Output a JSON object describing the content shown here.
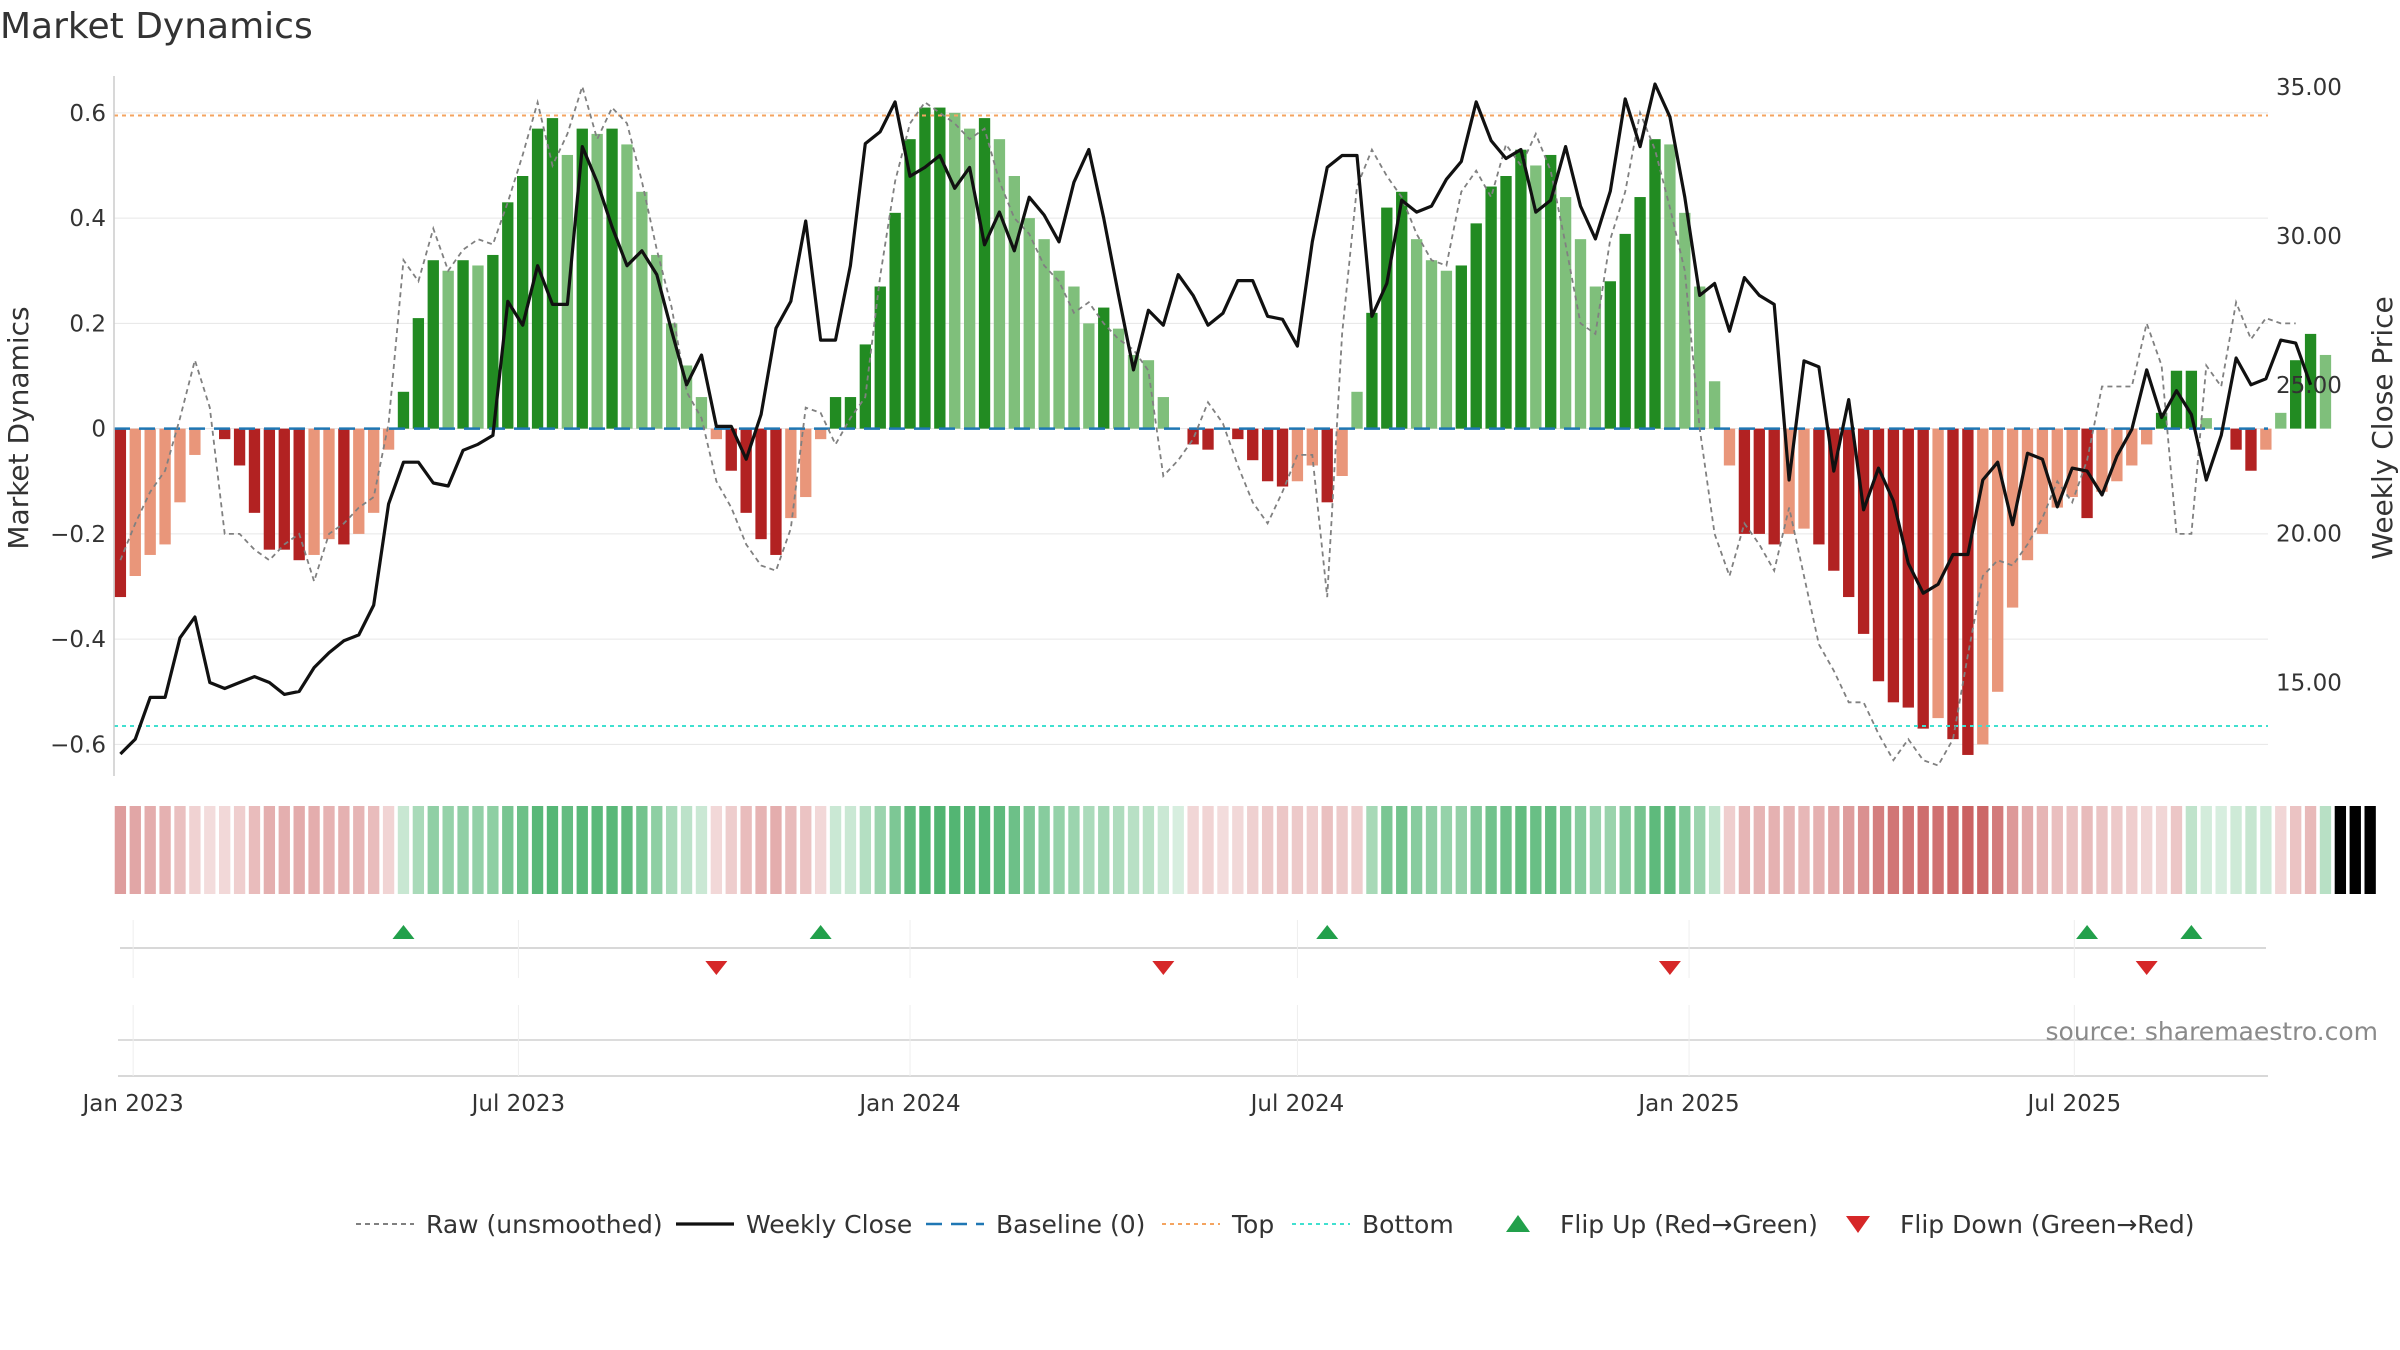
{
  "chart_data": {
    "type": "bar",
    "title": "Market Dynamics",
    "ylabel": "Market Dynamics",
    "y2label": "Weekly Close Price",
    "source": "source: sharemaestro.com",
    "ylim": [
      -0.66,
      0.67
    ],
    "y2lim": [
      11.86,
      35.37
    ],
    "yticks": [
      -0.6,
      -0.4,
      -0.2,
      0,
      0.2,
      0.4,
      0.6
    ],
    "ytick_labels": [
      "−0.6",
      "−0.4",
      "−0.2",
      "0",
      "0.2",
      "0.4",
      "0.6"
    ],
    "y2ticks": [
      15,
      20,
      25,
      30,
      35
    ],
    "y2tick_labels": [
      "15.00",
      "20.00",
      "25.00",
      "30.00",
      "35.00"
    ],
    "x_start": "2022-12-26",
    "x_step_days": 7,
    "xlim_dates": [
      "2022-12-23",
      "2025-09-30"
    ],
    "xticks": [
      {
        "date": "2023-01-01",
        "label": "Jan 2023"
      },
      {
        "date": "2023-07-01",
        "label": "Jul 2023"
      },
      {
        "date": "2024-01-01",
        "label": "Jan 2024"
      },
      {
        "date": "2024-07-01",
        "label": "Jul 2024"
      },
      {
        "date": "2025-01-01",
        "label": "Jan 2025"
      },
      {
        "date": "2025-07-01",
        "label": "Jul 2025"
      }
    ],
    "top": 0.595,
    "bottom": -0.565,
    "baseline": 0,
    "grid": true,
    "legend_position": "bottom",
    "series": [
      {
        "name": "Market Dynamics",
        "kind": "bar",
        "values": [
          -0.32,
          -0.28,
          -0.24,
          -0.22,
          -0.14,
          -0.05,
          0,
          -0.02,
          -0.07,
          -0.16,
          -0.23,
          -0.23,
          -0.25,
          -0.24,
          -0.21,
          -0.22,
          -0.2,
          -0.16,
          -0.04,
          0.07,
          0.21,
          0.32,
          0.3,
          0.32,
          0.31,
          0.33,
          0.43,
          0.48,
          0.57,
          0.59,
          0.52,
          0.57,
          0.56,
          0.57,
          0.54,
          0.45,
          0.33,
          0.2,
          0.12,
          0.06,
          -0.02,
          -0.08,
          -0.16,
          -0.21,
          -0.24,
          -0.17,
          -0.13,
          -0.02,
          0.06,
          0.06,
          0.16,
          0.27,
          0.41,
          0.55,
          0.61,
          0.61,
          0.6,
          0.57,
          0.59,
          0.55,
          0.48,
          0.4,
          0.36,
          0.3,
          0.27,
          0.2,
          0.23,
          0.19,
          0.14,
          0.13,
          0.06,
          0,
          -0.03,
          -0.04,
          0,
          -0.02,
          -0.06,
          -0.1,
          -0.11,
          -0.1,
          -0.07,
          -0.14,
          -0.09,
          0.07,
          0.22,
          0.42,
          0.45,
          0.36,
          0.32,
          0.3,
          0.31,
          0.39,
          0.46,
          0.48,
          0.53,
          0.5,
          0.52,
          0.44,
          0.36,
          0.27,
          0.28,
          0.37,
          0.44,
          0.55,
          0.54,
          0.41,
          0.27,
          0.09,
          -0.07,
          -0.2,
          -0.2,
          -0.22,
          -0.2,
          -0.19,
          -0.22,
          -0.27,
          -0.32,
          -0.39,
          -0.48,
          -0.52,
          -0.53,
          -0.57,
          -0.55,
          -0.59,
          -0.62,
          -0.6,
          -0.5,
          -0.34,
          -0.25,
          -0.2,
          -0.15,
          -0.13,
          -0.17,
          -0.12,
          -0.1,
          -0.07,
          -0.03,
          0.03,
          0.11,
          0.11,
          0.02,
          0,
          -0.04,
          -0.08,
          -0.04,
          0.03,
          0.13,
          0.18,
          0.14
        ]
      },
      {
        "name": "Raw (unsmoothed)",
        "kind": "line",
        "values": [
          -0.25,
          -0.18,
          -0.12,
          -0.08,
          0.02,
          0.13,
          0.04,
          -0.2,
          -0.2,
          -0.23,
          -0.25,
          -0.22,
          -0.2,
          -0.29,
          -0.2,
          -0.18,
          -0.15,
          -0.13,
          0.01,
          0.32,
          0.28,
          0.38,
          0.3,
          0.34,
          0.36,
          0.35,
          0.43,
          0.52,
          0.62,
          0.5,
          0.56,
          0.65,
          0.55,
          0.61,
          0.58,
          0.47,
          0.34,
          0.23,
          0.07,
          0.02,
          -0.1,
          -0.15,
          -0.22,
          -0.26,
          -0.27,
          -0.19,
          0.04,
          0.03,
          -0.03,
          0.02,
          0.06,
          0.29,
          0.47,
          0.58,
          0.62,
          0.6,
          0.58,
          0.55,
          0.57,
          0.47,
          0.4,
          0.37,
          0.31,
          0.28,
          0.22,
          0.24,
          0.2,
          0.17,
          0.15,
          0.11,
          -0.09,
          -0.06,
          -0.02,
          0.05,
          0.01,
          -0.07,
          -0.14,
          -0.18,
          -0.12,
          -0.05,
          -0.05,
          -0.32,
          0.18,
          0.46,
          0.53,
          0.48,
          0.44,
          0.37,
          0.32,
          0.31,
          0.45,
          0.49,
          0.44,
          0.54,
          0.5,
          0.56,
          0.49,
          0.35,
          0.2,
          0.18,
          0.36,
          0.45,
          0.6,
          0.53,
          0.42,
          0.3,
          0.0,
          -0.2,
          -0.28,
          -0.18,
          -0.22,
          -0.27,
          -0.15,
          -0.28,
          -0.41,
          -0.46,
          -0.52,
          -0.52,
          -0.58,
          -0.63,
          -0.59,
          -0.63,
          -0.64,
          -0.59,
          -0.43,
          -0.28,
          -0.25,
          -0.26,
          -0.22,
          -0.17,
          -0.1,
          -0.14,
          -0.06,
          0.08,
          0.08,
          0.08,
          0.2,
          0.12,
          -0.2,
          -0.2,
          0.12,
          0.08,
          0.24,
          0.17,
          0.21,
          0.2,
          0.2
        ]
      },
      {
        "name": "Weekly Close",
        "kind": "line",
        "axis": "right",
        "values": [
          12.6,
          13.1,
          14.5,
          14.5,
          16.5,
          17.2,
          15.0,
          14.8,
          15.0,
          15.2,
          15.0,
          14.6,
          14.7,
          15.5,
          16.0,
          16.4,
          16.6,
          17.6,
          21.0,
          22.4,
          22.4,
          21.7,
          21.6,
          22.8,
          23.0,
          23.3,
          27.8,
          27.0,
          29.0,
          27.7,
          27.7,
          33.0,
          31.8,
          30.3,
          29.0,
          29.5,
          28.7,
          26.8,
          25.0,
          26.0,
          23.6,
          23.6,
          22.5,
          24.0,
          26.9,
          27.8,
          30.5,
          26.5,
          26.5,
          29.0,
          33.1,
          33.5,
          34.5,
          32.0,
          32.3,
          32.7,
          31.6,
          32.3,
          29.7,
          30.8,
          29.5,
          31.3,
          30.7,
          29.8,
          31.8,
          32.9,
          30.6,
          28.0,
          25.5,
          27.5,
          27.0,
          28.7,
          28.0,
          27.0,
          27.4,
          28.5,
          28.5,
          27.3,
          27.2,
          26.3,
          29.8,
          32.3,
          32.7,
          32.7,
          27.3,
          28.4,
          31.2,
          30.8,
          31.0,
          31.9,
          32.5,
          34.5,
          33.2,
          32.6,
          32.9,
          30.8,
          31.2,
          33.0,
          31.0,
          29.9,
          31.5,
          34.6,
          33.0,
          35.1,
          34.0,
          31.3,
          28.0,
          28.4,
          26.8,
          28.6,
          28.0,
          27.7,
          21.8,
          25.8,
          25.6,
          22.1,
          24.5,
          20.8,
          22.2,
          21.1,
          19.0,
          18.0,
          18.3,
          19.3,
          19.3,
          21.8,
          22.4,
          20.3,
          22.7,
          22.5,
          20.9,
          22.2,
          22.1,
          21.3,
          22.6,
          23.5,
          25.5,
          23.9,
          24.8,
          24.0,
          21.8,
          23.3,
          25.9,
          25.0,
          25.2,
          26.5,
          26.4,
          25.0
        ]
      }
    ],
    "strip": [
      -1,
      -1,
      -1,
      -1,
      -1,
      -1,
      -1,
      -1,
      -1,
      -1,
      -1,
      -1,
      -1,
      -1,
      -1,
      -1,
      -1,
      -1,
      -1,
      1,
      1,
      1,
      1,
      1,
      1,
      1,
      1,
      1,
      1,
      1,
      1,
      1,
      1,
      1,
      1,
      1,
      1,
      1,
      1,
      1,
      -1,
      -1,
      -1,
      -1,
      -1,
      -1,
      -1,
      -1,
      1,
      1,
      1,
      1,
      1,
      1,
      1,
      1,
      1,
      1,
      1,
      1,
      1,
      1,
      1,
      1,
      1,
      1,
      1,
      1,
      1,
      1,
      1,
      1,
      -1,
      -1,
      -1,
      -1,
      -1,
      -1,
      -1,
      -1,
      -1,
      -1,
      -1,
      -1,
      1,
      1,
      1,
      1,
      1,
      1,
      1,
      1,
      1,
      1,
      1,
      1,
      1,
      1,
      1,
      1,
      1,
      1,
      1,
      1,
      1,
      1,
      1,
      1,
      -1,
      -1,
      -1,
      -1,
      -1,
      -1,
      -1,
      -1,
      -1,
      -1,
      -1,
      -1,
      -1,
      -1,
      -1,
      -1,
      -1,
      -1,
      -1,
      -1,
      -1,
      -1,
      -1,
      -1,
      -1,
      -1,
      -1,
      -1,
      -1,
      -1,
      -1,
      1,
      1,
      1,
      1,
      1,
      1,
      -1,
      -1,
      -1,
      1,
      1,
      1,
      1
    ],
    "flips": [
      {
        "date": "2023-05-08",
        "direction": "up"
      },
      {
        "date": "2023-10-02",
        "direction": "down"
      },
      {
        "date": "2023-11-20",
        "direction": "up"
      },
      {
        "date": "2024-04-29",
        "direction": "down"
      },
      {
        "date": "2024-07-15",
        "direction": "up"
      },
      {
        "date": "2024-12-23",
        "direction": "down"
      },
      {
        "date": "2025-07-07",
        "direction": "up"
      },
      {
        "date": "2025-08-04",
        "direction": "down"
      },
      {
        "date": "2025-08-25",
        "direction": "up"
      }
    ],
    "legend": [
      {
        "label": "Raw (unsmoothed)",
        "style": "dashed-gray"
      },
      {
        "label": "Weekly Close",
        "style": "solid-black"
      },
      {
        "label": "Baseline (0)",
        "style": "dashed-blue"
      },
      {
        "label": "Top",
        "style": "dotted-orange"
      },
      {
        "label": "Bottom",
        "style": "dotted-cyan"
      },
      {
        "label": "Flip Up (Red→Green)",
        "style": "triangle-up-green"
      },
      {
        "label": "Flip Down (Green→Red)",
        "style": "triangle-down-red"
      }
    ],
    "colors": {
      "pos_strong": "#228b22",
      "pos_weak": "#7fbf7b",
      "neg_strong": "#b22222",
      "neg_weak": "#e9967a",
      "raw": "#808080",
      "close": "#111111",
      "baseline": "#1f77b4",
      "top": "#f4a460",
      "bottom": "#40e0d0",
      "flip_up": "#22a04b",
      "flip_down": "#d62728"
    }
  }
}
